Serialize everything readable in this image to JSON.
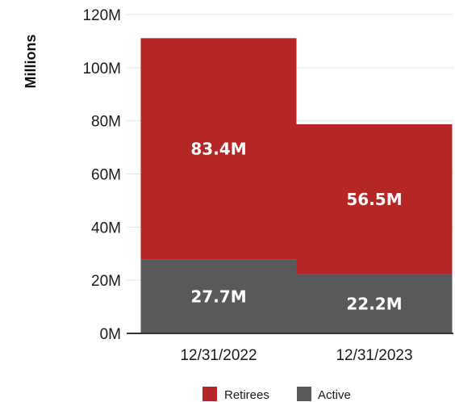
{
  "chart_data": {
    "type": "bar",
    "stacked": true,
    "categories": [
      "12/31/2022",
      "12/31/2023"
    ],
    "series": [
      {
        "name": "Active",
        "values": [
          27.7,
          22.2
        ],
        "labels": [
          "27.7M",
          "22.2M"
        ],
        "color": "#58595b"
      },
      {
        "name": "Retirees",
        "values": [
          83.4,
          56.5
        ],
        "labels": [
          "83.4M",
          "56.5M"
        ],
        "color": "#b52626"
      }
    ],
    "title": "",
    "xlabel": "",
    "ylabel": "Millions",
    "ylim": [
      0,
      120
    ],
    "yticks": [
      0,
      20,
      40,
      60,
      80,
      100,
      120
    ],
    "ytick_labels": [
      "0M",
      "20M",
      "40M",
      "60M",
      "80M",
      "100M",
      "120M"
    ],
    "grid": true,
    "legend": {
      "position": "bottom-center",
      "order": [
        "Retirees",
        "Active"
      ]
    }
  }
}
